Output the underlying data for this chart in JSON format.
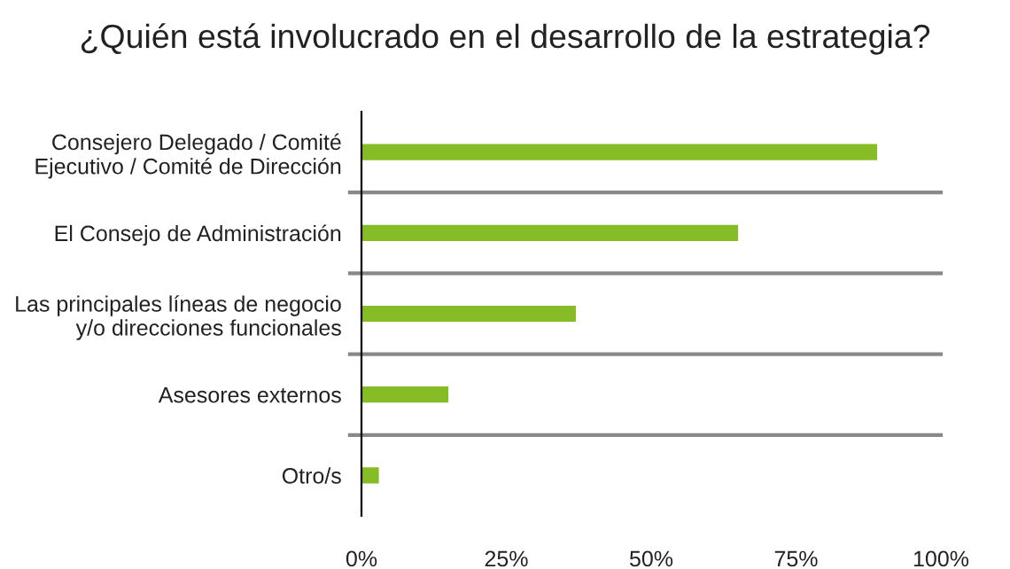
{
  "chart_data": {
    "type": "bar",
    "orientation": "horizontal",
    "title": "¿Quién está involucrado en el desarrollo de la estrategia?",
    "categories": [
      "Consejero Delegado / Comité\nEjecutivo / Comité de Dirección",
      "El Consejo de Administración",
      "Las principales líneas de negocio\ny/o direcciones funcionales",
      "Asesores externos",
      "Otro/s"
    ],
    "values": [
      89,
      65,
      37,
      15,
      3
    ],
    "color": "#86bc25",
    "xlim": [
      0,
      100
    ],
    "xticks": [
      {
        "value": 0,
        "label": "0%"
      },
      {
        "value": 25,
        "label": "25%"
      },
      {
        "value": 50,
        "label": "50%"
      },
      {
        "value": 75,
        "label": "75%"
      },
      {
        "value": 100,
        "label": "100%"
      }
    ],
    "grid": "y"
  }
}
